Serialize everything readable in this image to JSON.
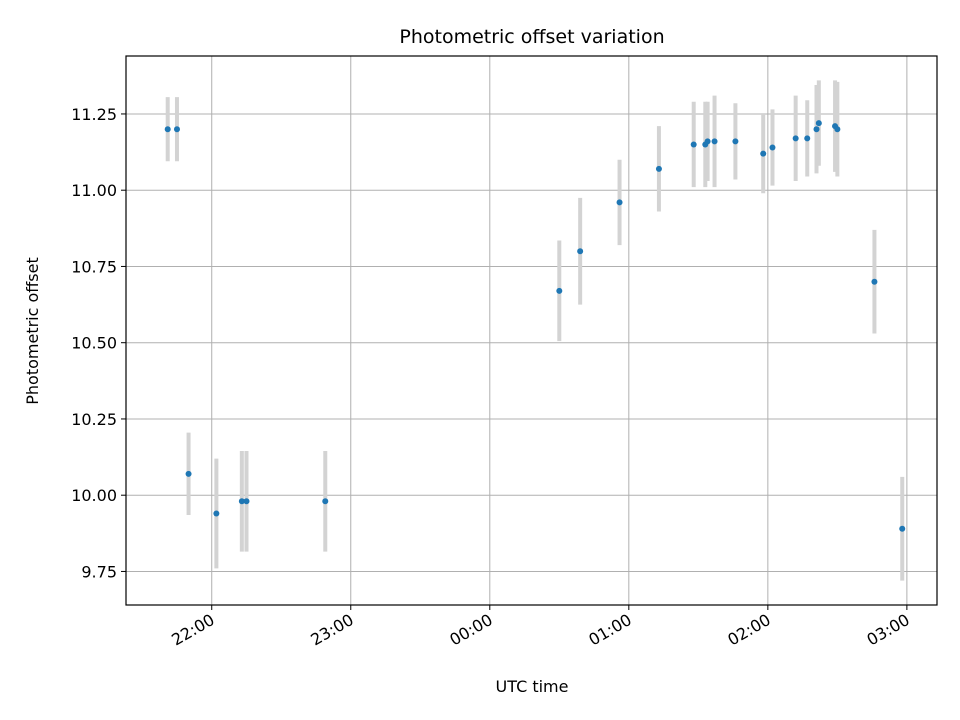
{
  "chart_data": {
    "type": "scatter",
    "title": "Photometric offset variation",
    "xlabel": "UTC time",
    "ylabel": "Photometric offset",
    "grid": true,
    "legend": "none",
    "xlim": [
      "21:23",
      "03:13"
    ],
    "ylim": [
      9.64,
      11.44
    ],
    "x_ticks": [
      "22:00",
      "23:00",
      "00:00",
      "01:00",
      "02:00",
      "03:00"
    ],
    "y_ticks": [
      "9.75",
      "10.00",
      "10.25",
      "10.50",
      "10.75",
      "11.00",
      "11.25"
    ],
    "colors": {
      "point": "#1f77b4",
      "errorbar": "#d3d3d3",
      "grid": "#b0b0b0"
    },
    "points": [
      {
        "x": "21:41",
        "y": 11.2,
        "yerr": 0.105
      },
      {
        "x": "21:45",
        "y": 11.2,
        "yerr": 0.105
      },
      {
        "x": "21:50",
        "y": 10.07,
        "yerr": 0.135
      },
      {
        "x": "22:02",
        "y": 9.94,
        "yerr": 0.18
      },
      {
        "x": "22:13",
        "y": 9.98,
        "yerr": 0.165
      },
      {
        "x": "22:15",
        "y": 9.98,
        "yerr": 0.165
      },
      {
        "x": "22:49",
        "y": 9.98,
        "yerr": 0.165
      },
      {
        "x": "00:30",
        "y": 10.67,
        "yerr": 0.165
      },
      {
        "x": "00:39",
        "y": 10.8,
        "yerr": 0.175
      },
      {
        "x": "00:56",
        "y": 10.96,
        "yerr": 0.14
      },
      {
        "x": "01:13",
        "y": 11.07,
        "yerr": 0.14
      },
      {
        "x": "01:28",
        "y": 11.15,
        "yerr": 0.14
      },
      {
        "x": "01:33",
        "y": 11.15,
        "yerr": 0.14
      },
      {
        "x": "01:34",
        "y": 11.16,
        "yerr": 0.13
      },
      {
        "x": "01:37",
        "y": 11.16,
        "yerr": 0.15
      },
      {
        "x": "01:46",
        "y": 11.16,
        "yerr": 0.125
      },
      {
        "x": "01:58",
        "y": 11.12,
        "yerr": 0.13
      },
      {
        "x": "02:02",
        "y": 11.14,
        "yerr": 0.125
      },
      {
        "x": "02:12",
        "y": 11.17,
        "yerr": 0.14
      },
      {
        "x": "02:17",
        "y": 11.17,
        "yerr": 0.125
      },
      {
        "x": "02:21",
        "y": 11.2,
        "yerr": 0.145
      },
      {
        "x": "02:22",
        "y": 11.22,
        "yerr": 0.14
      },
      {
        "x": "02:29",
        "y": 11.21,
        "yerr": 0.15
      },
      {
        "x": "02:30",
        "y": 11.2,
        "yerr": 0.155
      },
      {
        "x": "02:46",
        "y": 10.7,
        "yerr": 0.17
      },
      {
        "x": "02:58",
        "y": 9.89,
        "yerr": 0.17
      }
    ]
  }
}
